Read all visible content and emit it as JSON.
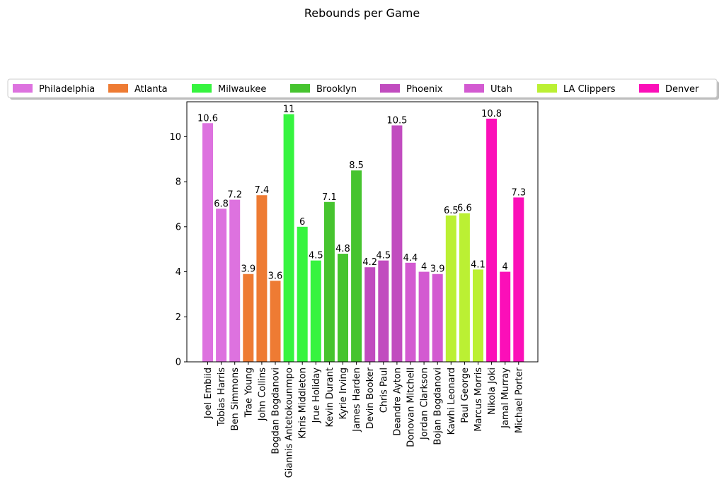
{
  "chart_data": {
    "type": "bar",
    "title": "Rebounds per Game",
    "xlabel": "",
    "ylabel": "",
    "ylim": [
      0,
      11.55
    ],
    "yticks": [
      0,
      2,
      4,
      6,
      8,
      10
    ],
    "grid": false,
    "legend_position": "top-center",
    "legend": [
      {
        "name": "Philadelphia",
        "color": "#dd72df"
      },
      {
        "name": "Atlanta",
        "color": "#ee7b33"
      },
      {
        "name": "Milwaukee",
        "color": "#36f43f"
      },
      {
        "name": "Brooklyn",
        "color": "#46c42f"
      },
      {
        "name": "Phoenix",
        "color": "#c14cbf"
      },
      {
        "name": "Utah",
        "color": "#d35ad1"
      },
      {
        "name": "LA Clippers",
        "color": "#bbf033"
      },
      {
        "name": "Denver",
        "color": "#fb0fb8"
      }
    ],
    "categories": [
      "Joel Embiid",
      "Tobias Harris",
      "Ben Simmons",
      "Trae Young",
      "John Collins",
      "Bogdan Bogdanovi",
      "Giannis Antetokounmpo",
      "Khris Middleton",
      "Jrue Holiday",
      "Kevin Durant",
      "Kyrie Irving",
      "James Harden",
      "Devin Booker",
      "Chris Paul",
      "Deandre Ayton",
      "Donovan Mitchell",
      "Jordan Clarkson",
      "Bojan Bogdanovi",
      "Kawhi Leonard",
      "Paul George",
      "Marcus Morris",
      "Nikola Joki",
      "Jamal Murray",
      "Michael Porter"
    ],
    "values": [
      10.6,
      6.8,
      7.2,
      3.9,
      7.4,
      3.6,
      11,
      6,
      4.5,
      7.1,
      4.8,
      8.5,
      4.2,
      4.5,
      10.5,
      4.4,
      4,
      3.9,
      6.5,
      6.6,
      4.1,
      10.8,
      4,
      7.3
    ],
    "labels": [
      "10.6",
      "6.8",
      "7.2",
      "3.9",
      "7.4",
      "3.6",
      "11",
      "6",
      "4.5",
      "7.1",
      "4.8",
      "8.5",
      "4.2",
      "4.5",
      "10.5",
      "4.4",
      "4",
      "3.9",
      "6.5",
      "6.6",
      "4.1",
      "10.8",
      "4",
      "7.3"
    ],
    "team_index": [
      0,
      0,
      0,
      1,
      1,
      1,
      2,
      2,
      2,
      3,
      3,
      3,
      4,
      4,
      4,
      5,
      5,
      5,
      6,
      6,
      6,
      7,
      7,
      7
    ]
  }
}
